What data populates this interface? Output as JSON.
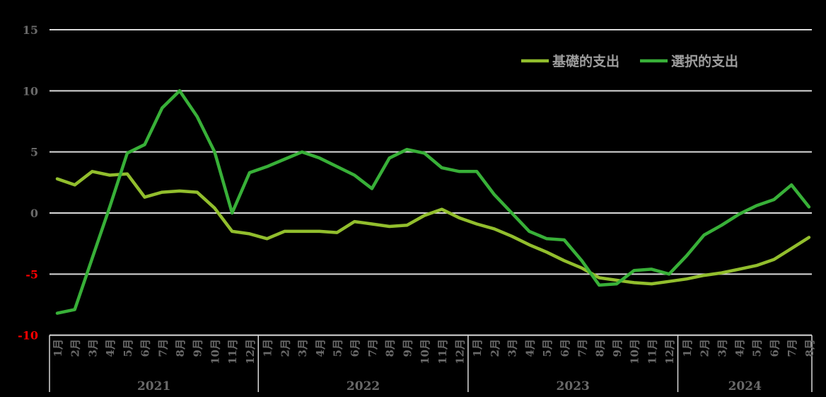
{
  "chart_data": {
    "type": "line",
    "title": "",
    "background_color": "#000000",
    "grid_color": "#d9d9d9",
    "tick_label_color": "#696969",
    "negative_tick_label_color": "#ff0000",
    "legend_text_color": "#9d9d9d",
    "legend_position": "top-right",
    "grid": true,
    "ylim": [
      -10,
      15
    ],
    "y_ticks": [
      15,
      10,
      5,
      0,
      -5,
      -10
    ],
    "year_groups": [
      {
        "label": "2021",
        "months": 12
      },
      {
        "label": "2022",
        "months": 12
      },
      {
        "label": "2023",
        "months": 12
      },
      {
        "label": "2024",
        "months": 8
      }
    ],
    "x_labels": [
      "1月",
      "2月",
      "3月",
      "4月",
      "5月",
      "6月",
      "7月",
      "8月",
      "9月",
      "10月",
      "11月",
      "12月",
      "1月",
      "2月",
      "3月",
      "4月",
      "5月",
      "6月",
      "7月",
      "8月",
      "9月",
      "10月",
      "11月",
      "12月",
      "1月",
      "2月",
      "3月",
      "4月",
      "5月",
      "6月",
      "7月",
      "8月",
      "9月",
      "10月",
      "11月",
      "12月",
      "1月",
      "2月",
      "3月",
      "4月",
      "5月",
      "6月",
      "7月",
      "8月"
    ],
    "series": [
      {
        "name": "基礎的支出",
        "color": "#92be2d",
        "values": [
          2.8,
          2.3,
          3.4,
          3.1,
          3.2,
          1.3,
          1.7,
          1.8,
          1.7,
          0.4,
          -1.5,
          -1.7,
          -2.1,
          -1.5,
          -1.5,
          -1.5,
          -1.6,
          -0.7,
          -0.9,
          -1.1,
          -1.0,
          -0.2,
          0.3,
          -0.4,
          -0.9,
          -1.3,
          -1.9,
          -2.6,
          -3.2,
          -3.9,
          -4.5,
          -5.3,
          -5.5,
          -5.7,
          -5.8,
          -5.6,
          -5.4,
          -5.1,
          -4.9,
          -4.6,
          -4.3,
          -3.8,
          -2.9,
          -2.0
        ]
      },
      {
        "name": "選択的支出",
        "color": "#38b038",
        "values": [
          -8.2,
          -7.9,
          -3.7,
          0.5,
          4.9,
          5.6,
          8.6,
          10.0,
          7.9,
          5.0,
          0.0,
          3.3,
          3.8,
          4.4,
          5.0,
          4.5,
          3.8,
          3.1,
          2.0,
          4.5,
          5.2,
          4.9,
          3.7,
          3.4,
          3.4,
          1.5,
          0.0,
          -1.5,
          -2.1,
          -2.2,
          -3.9,
          -5.9,
          -5.8,
          -4.7,
          -4.6,
          -5.0,
          -3.5,
          -1.8,
          -1.0,
          -0.1,
          0.6,
          1.1,
          2.3,
          0.5
        ]
      }
    ]
  }
}
